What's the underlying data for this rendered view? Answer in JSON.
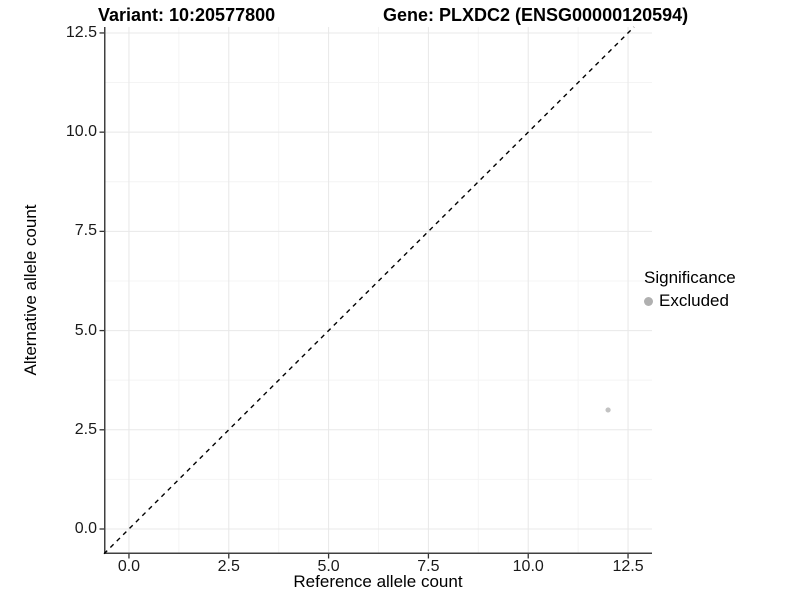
{
  "chart": {
    "title_left": "Variant: 10:20577800",
    "title_right": "Gene: PLXDC2 (ENSG00000120594)",
    "xlabel": "Reference allele count",
    "ylabel": "Alternative allele count",
    "legend": {
      "title": "Significance",
      "items": [
        {
          "label": "Excluded",
          "color": "#b0b0b0"
        }
      ]
    }
  },
  "chart_data": {
    "type": "scatter",
    "title": "Variant: 10:20577800   Gene: PLXDC2 (ENSG00000120594)",
    "xlabel": "Reference allele count",
    "ylabel": "Alternative allele count",
    "x_ticks": [
      0.0,
      2.5,
      5.0,
      7.5,
      10.0,
      12.5
    ],
    "y_ticks": [
      0.0,
      2.5,
      5.0,
      7.5,
      10.0,
      12.5
    ],
    "x_tick_labels": [
      "0.0",
      "2.5",
      "5.0",
      "7.5",
      "10.0",
      "12.5"
    ],
    "y_tick_labels": [
      "0.0",
      "2.5",
      "5.0",
      "7.5",
      "10.0",
      "12.5"
    ],
    "x_minor_ticks": [
      1.25,
      3.75,
      6.25,
      8.75,
      11.25
    ],
    "y_minor_ticks": [
      1.25,
      3.75,
      6.25,
      8.75,
      11.25
    ],
    "xlim": [
      -0.625,
      13.1
    ],
    "ylim": [
      -0.63,
      12.65
    ],
    "grid": "major+minor",
    "legend_position": "right",
    "series": [
      {
        "name": "Excluded",
        "color": "#c2c2c2",
        "points": [
          {
            "x": 12,
            "y": 3
          }
        ]
      }
    ],
    "reference_line": {
      "type": "identity",
      "slope": 1,
      "intercept": 0,
      "style": "dashed",
      "color": "#000000"
    },
    "style": {
      "grid_major_color": "#e8e8e8",
      "grid_minor_color": "#f4f4f4",
      "axis_line_color": "#404040",
      "tick_mark_color": "#333333",
      "background": "#ffffff"
    }
  }
}
